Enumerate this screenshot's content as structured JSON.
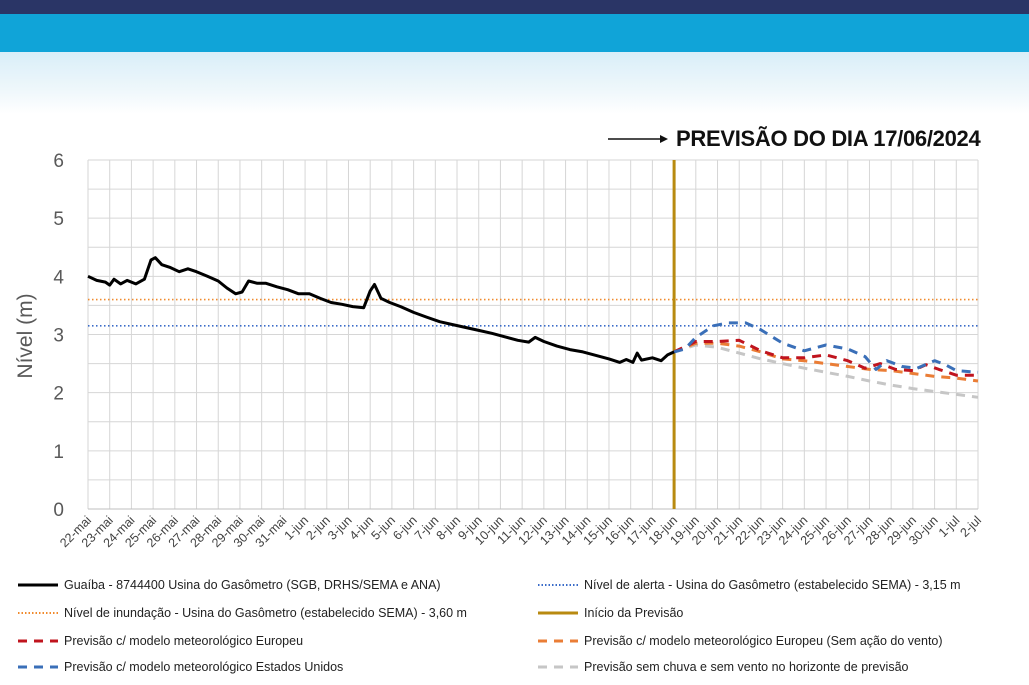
{
  "header": {
    "forecast_title": "PREVISÃO DO DIA 17/06/2024"
  },
  "colors": {
    "observed": "#000000",
    "alert": "#3a6bc8",
    "flood": "#f08a2c",
    "forecast_start": "#b88a10",
    "eu": "#c0141e",
    "eu_nowind": "#ea7d36",
    "us": "#3a6fb8",
    "nowind_norain": "#c6c6c6",
    "grid": "#d6d6d6"
  },
  "chart_data": {
    "type": "line",
    "title": "PREVISÃO DO DIA 17/06/2024",
    "xlabel": "",
    "ylabel": "Nível (m)",
    "ylim": [
      0,
      6
    ],
    "yticks": [
      "0",
      "1",
      "2",
      "3",
      "4",
      "5",
      "6"
    ],
    "grid": true,
    "legend_position": "bottom",
    "categories": [
      "22-mai",
      "23-mai",
      "24-mai",
      "25-mai",
      "26-mai",
      "27-mai",
      "28-mai",
      "29-mai",
      "30-mai",
      "31-mai",
      "1-jun",
      "2-jun",
      "3-jun",
      "4-jun",
      "5-jun",
      "6-jun",
      "7-jun",
      "8-jun",
      "9-jun",
      "10-jun",
      "11-jun",
      "12-jun",
      "13-jun",
      "14-jun",
      "15-jun",
      "16-jun",
      "17-jun",
      "18-jun",
      "19-jun",
      "20-jun",
      "21-jun",
      "22-jun",
      "23-jun",
      "24-jun",
      "25-jun",
      "26-jun",
      "27-jun",
      "28-jun",
      "29-jun",
      "30-jun",
      "1-jul",
      "2-jul"
    ],
    "alert_level": {
      "label": "Nível de alerta - Usina do Gasômetro (estabelecido SEMA) - 3,15 m",
      "value": 3.15
    },
    "flood_level": {
      "label": "Nível de inundação - Usina do Gasômetro (estabelecido SEMA) - 3,60 m",
      "value": 3.6
    },
    "forecast_start": {
      "label": "Início da Previsão",
      "x": 27.0
    },
    "series": [
      {
        "name": "Guaíba - 8744400 Usina do Gasômetro (SGB, DRHS/SEMA e ANA)",
        "style": "solid",
        "points": [
          [
            0,
            4.0
          ],
          [
            0.4,
            3.93
          ],
          [
            0.8,
            3.9
          ],
          [
            1.0,
            3.85
          ],
          [
            1.2,
            3.95
          ],
          [
            1.5,
            3.87
          ],
          [
            1.8,
            3.93
          ],
          [
            2.2,
            3.87
          ],
          [
            2.6,
            3.95
          ],
          [
            2.9,
            4.28
          ],
          [
            3.1,
            4.32
          ],
          [
            3.4,
            4.2
          ],
          [
            3.8,
            4.15
          ],
          [
            4.2,
            4.08
          ],
          [
            4.6,
            4.13
          ],
          [
            5.0,
            4.08
          ],
          [
            5.5,
            4.0
          ],
          [
            6.0,
            3.92
          ],
          [
            6.4,
            3.8
          ],
          [
            6.8,
            3.7
          ],
          [
            7.1,
            3.73
          ],
          [
            7.4,
            3.92
          ],
          [
            7.8,
            3.88
          ],
          [
            8.2,
            3.88
          ],
          [
            8.7,
            3.82
          ],
          [
            9.2,
            3.77
          ],
          [
            9.7,
            3.7
          ],
          [
            10.2,
            3.7
          ],
          [
            10.7,
            3.62
          ],
          [
            11.2,
            3.55
          ],
          [
            11.7,
            3.52
          ],
          [
            12.2,
            3.48
          ],
          [
            12.7,
            3.46
          ],
          [
            13.0,
            3.75
          ],
          [
            13.2,
            3.86
          ],
          [
            13.5,
            3.62
          ],
          [
            13.9,
            3.55
          ],
          [
            14.4,
            3.48
          ],
          [
            15.0,
            3.38
          ],
          [
            15.6,
            3.3
          ],
          [
            16.2,
            3.22
          ],
          [
            16.8,
            3.17
          ],
          [
            17.4,
            3.12
          ],
          [
            18.0,
            3.07
          ],
          [
            18.6,
            3.02
          ],
          [
            19.2,
            2.96
          ],
          [
            19.8,
            2.9
          ],
          [
            20.3,
            2.87
          ],
          [
            20.6,
            2.95
          ],
          [
            21.0,
            2.88
          ],
          [
            21.6,
            2.8
          ],
          [
            22.2,
            2.74
          ],
          [
            22.8,
            2.7
          ],
          [
            23.4,
            2.64
          ],
          [
            24.0,
            2.58
          ],
          [
            24.5,
            2.52
          ],
          [
            24.8,
            2.57
          ],
          [
            25.1,
            2.52
          ],
          [
            25.3,
            2.68
          ],
          [
            25.5,
            2.56
          ],
          [
            26.0,
            2.6
          ],
          [
            26.4,
            2.55
          ],
          [
            26.7,
            2.65
          ],
          [
            27.0,
            2.7
          ]
        ]
      },
      {
        "name": "Previsão c/ modelo meteorológico Europeu",
        "style": "dashed",
        "points": [
          [
            27.0,
            2.7
          ],
          [
            28.0,
            2.88
          ],
          [
            29.0,
            2.88
          ],
          [
            30.0,
            2.9
          ],
          [
            31.0,
            2.72
          ],
          [
            32.0,
            2.6
          ],
          [
            33.0,
            2.6
          ],
          [
            34.0,
            2.65
          ],
          [
            35.0,
            2.55
          ],
          [
            35.8,
            2.42
          ],
          [
            36.5,
            2.5
          ],
          [
            37.2,
            2.4
          ],
          [
            38.0,
            2.38
          ],
          [
            38.6,
            2.48
          ],
          [
            39.2,
            2.4
          ],
          [
            40.0,
            2.3
          ],
          [
            41.0,
            2.3
          ]
        ]
      },
      {
        "name": "Previsão c/ modelo meteorológico Europeu (Sem ação do vento)",
        "style": "dashed",
        "points": [
          [
            27.0,
            2.7
          ],
          [
            28.0,
            2.85
          ],
          [
            29.0,
            2.85
          ],
          [
            30.0,
            2.8
          ],
          [
            31.0,
            2.7
          ],
          [
            32.0,
            2.58
          ],
          [
            33.0,
            2.55
          ],
          [
            34.0,
            2.5
          ],
          [
            35.0,
            2.45
          ],
          [
            36.0,
            2.4
          ],
          [
            37.0,
            2.38
          ],
          [
            38.0,
            2.33
          ],
          [
            39.0,
            2.28
          ],
          [
            40.0,
            2.25
          ],
          [
            41.0,
            2.2
          ]
        ]
      },
      {
        "name": "Previsão c/ modelo meteorológico Estados Unidos",
        "style": "dashed",
        "points": [
          [
            27.0,
            2.7
          ],
          [
            27.5,
            2.75
          ],
          [
            28.0,
            2.95
          ],
          [
            28.8,
            3.15
          ],
          [
            29.5,
            3.2
          ],
          [
            30.3,
            3.2
          ],
          [
            31.0,
            3.08
          ],
          [
            32.0,
            2.85
          ],
          [
            33.0,
            2.72
          ],
          [
            34.0,
            2.82
          ],
          [
            35.0,
            2.75
          ],
          [
            35.8,
            2.62
          ],
          [
            36.3,
            2.4
          ],
          [
            36.8,
            2.55
          ],
          [
            37.5,
            2.45
          ],
          [
            38.2,
            2.42
          ],
          [
            39.0,
            2.55
          ],
          [
            39.5,
            2.48
          ],
          [
            40.0,
            2.38
          ],
          [
            41.0,
            2.35
          ]
        ]
      },
      {
        "name": "Previsão sem chuva e sem vento no horizonte de previsão",
        "style": "dashed",
        "points": [
          [
            27.0,
            2.7
          ],
          [
            28.0,
            2.82
          ],
          [
            29.0,
            2.78
          ],
          [
            30.0,
            2.68
          ],
          [
            31.0,
            2.58
          ],
          [
            32.0,
            2.5
          ],
          [
            33.0,
            2.42
          ],
          [
            34.0,
            2.35
          ],
          [
            35.0,
            2.28
          ],
          [
            36.0,
            2.2
          ],
          [
            37.0,
            2.13
          ],
          [
            38.0,
            2.07
          ],
          [
            39.0,
            2.02
          ],
          [
            40.0,
            1.97
          ],
          [
            41.0,
            1.92
          ]
        ]
      }
    ]
  }
}
